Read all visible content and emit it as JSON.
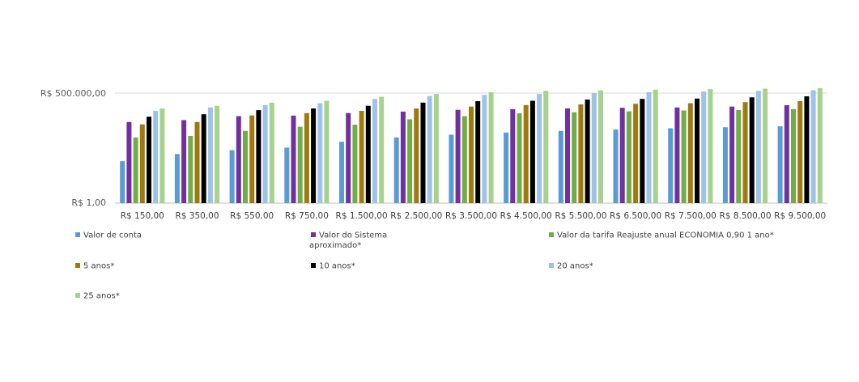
{
  "chart_data": {
    "type": "bar",
    "yscale": "log",
    "ylim": [
      1,
      500000
    ],
    "ytick_labels": [
      "R$ 500.000,00",
      "R$ 1,00"
    ],
    "categories": [
      "R$ 150,00",
      "R$ 350,00",
      "R$ 550,00",
      "R$ 750,00",
      "R$ 1.500,00",
      "R$ 2.500,00",
      "R$ 3.500,00",
      "R$ 4.500,00",
      "R$ 5.500,00",
      "R$ 6.500,00",
      "R$ 7.500,00",
      "R$ 8.500,00",
      "R$ 9.500,00"
    ],
    "series": [
      {
        "name": "Valor de conta",
        "color": "#5B9BD5",
        "values": [
          150,
          350,
          550,
          750,
          1500,
          2500,
          3500,
          4500,
          5500,
          6500,
          7500,
          8500,
          9500
        ]
      },
      {
        "name": "Valor do Sistema aproximado*",
        "color": "#7030A0",
        "values": [
          16000,
          20000,
          32000,
          34000,
          46000,
          55000,
          68000,
          74000,
          81000,
          86000,
          90000,
          100000,
          118000
        ]
      },
      {
        "name": "Valor da tarifa Reajuste anual ECONOMIA 0,90 1 ano*",
        "color": "#70AD47",
        "values": [
          2500,
          3000,
          5500,
          9000,
          11500,
          22000,
          32000,
          45000,
          51000,
          57000,
          63000,
          66000,
          75000
        ]
      },
      {
        "name": "5 anos*",
        "color": "#9E7A0E",
        "values": [
          12000,
          16000,
          35000,
          46000,
          60000,
          80000,
          100000,
          120000,
          130000,
          140000,
          150000,
          170000,
          190000
        ]
      },
      {
        "name": "10 anos*",
        "color": "#000000",
        "values": [
          30000,
          40000,
          65000,
          80000,
          110000,
          160000,
          190000,
          200000,
          230000,
          250000,
          260000,
          300000,
          340000
        ]
      },
      {
        "name": "20 anos*",
        "color": "#9DC3E6",
        "values": [
          60000,
          90000,
          120000,
          150000,
          250000,
          350000,
          400000,
          450000,
          500000,
          550000,
          600000,
          650000,
          700000
        ]
      },
      {
        "name": "25 anos*",
        "color": "#A9D18E",
        "values": [
          80000,
          110000,
          160000,
          200000,
          320000,
          450000,
          550000,
          650000,
          700000,
          750000,
          800000,
          850000,
          900000
        ]
      }
    ]
  },
  "legend": {
    "items": [
      {
        "label": "Valor de conta",
        "color": "#5B9BD5"
      },
      {
        "label": "Valor do Sistema",
        "label2": "aproximado*",
        "color": "#7030A0"
      },
      {
        "label": "Valor da tarifa Reajuste anual ECONOMIA 0,90  1 ano*",
        "color": "#70AD47"
      },
      {
        "label": "5 anos*",
        "color": "#9E7A0E"
      },
      {
        "label": "10 anos*",
        "color": "#000000"
      },
      {
        "label": "20 anos*",
        "color": "#9DC3E6"
      },
      {
        "label": "25 anos*",
        "color": "#A9D18E"
      }
    ]
  }
}
